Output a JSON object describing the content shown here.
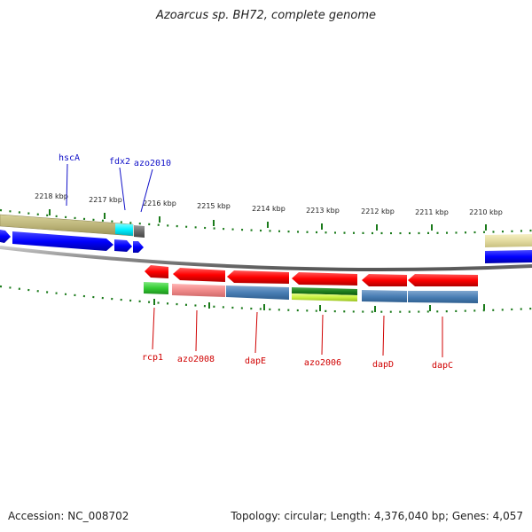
{
  "title": "Azoarcus sp. BH72, complete genome",
  "footer": {
    "accession": "Accession: NC_008702",
    "summary": "Topology: circular; Length: 4,376,040 bp; Genes: 4,057"
  },
  "ruler_labels": [
    "2218 kbp",
    "2217 kbp",
    "2216 kbp",
    "2215 kbp",
    "2214 kbp",
    "2213 kbp",
    "2212 kbp",
    "2211 kbp",
    "2210 kbp"
  ],
  "forward_gene_labels": [
    "hscA",
    "fdx2",
    "azo2010"
  ],
  "reverse_gene_labels": [
    "rcp1",
    "azo2008",
    "dapE",
    "azo2006",
    "dapD",
    "dapC"
  ],
  "colors": {
    "forward_gene": "#0000ff",
    "reverse_gene": "#ff0000",
    "forward_label": "#1010c8",
    "reverse_label": "#d00000",
    "tick": "#1a7a1a",
    "backbone": "#8a8a8a"
  }
}
